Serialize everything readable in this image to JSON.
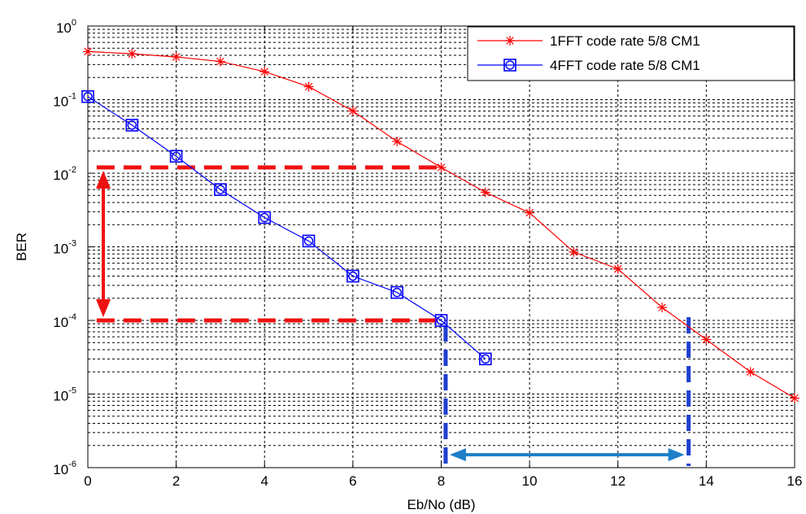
{
  "chart_data": {
    "type": "line",
    "xlabel": "Eb/No (dB)",
    "ylabel": "BER",
    "yscale": "log",
    "xlim": [
      0,
      16
    ],
    "ylim": [
      1e-06,
      1
    ],
    "grid": true,
    "legend_position": "top-right",
    "x_ticks": [
      "0",
      "2",
      "4",
      "6",
      "8",
      "10",
      "12",
      "14",
      "16"
    ],
    "y_ticks": [
      {
        "base": "10",
        "exp": "-6"
      },
      {
        "base": "10",
        "exp": "-5"
      },
      {
        "base": "10",
        "exp": "-4"
      },
      {
        "base": "10",
        "exp": "-3"
      },
      {
        "base": "10",
        "exp": "-2"
      },
      {
        "base": "10",
        "exp": "-1"
      },
      {
        "base": "10",
        "exp": "0"
      }
    ],
    "series": [
      {
        "name": "1FFT code rate 5/8 CM1",
        "color": "#ff0000",
        "marker": "asterisk",
        "x": [
          0,
          1,
          2,
          3,
          4,
          5,
          6,
          7,
          8,
          9,
          10,
          11,
          12,
          13,
          14,
          15,
          16
        ],
        "y": [
          0.45,
          0.42,
          0.38,
          0.33,
          0.24,
          0.15,
          0.07,
          0.027,
          0.012,
          0.0055,
          0.0029,
          0.00085,
          0.0005,
          0.00015,
          5.5e-05,
          2e-05,
          8.8e-06
        ]
      },
      {
        "name": "4FFT code rate 5/8 CM1",
        "color": "#0000ff",
        "marker": "square-circle",
        "x": [
          0,
          1,
          2,
          3,
          4,
          5,
          6,
          7,
          8,
          9
        ],
        "y": [
          0.11,
          0.045,
          0.017,
          0.006,
          0.0025,
          0.0012,
          0.0004,
          0.00024,
          0.0001,
          3e-05
        ]
      }
    ],
    "annotations": {
      "red_dashed_levels": [
        0.012,
        0.0001
      ],
      "red_dashed_x_end": 8,
      "red_arrow_x": 0.35,
      "blue_dashed_x": [
        8.1,
        13.6
      ],
      "blue_arrow_y": 1.5e-06
    }
  }
}
